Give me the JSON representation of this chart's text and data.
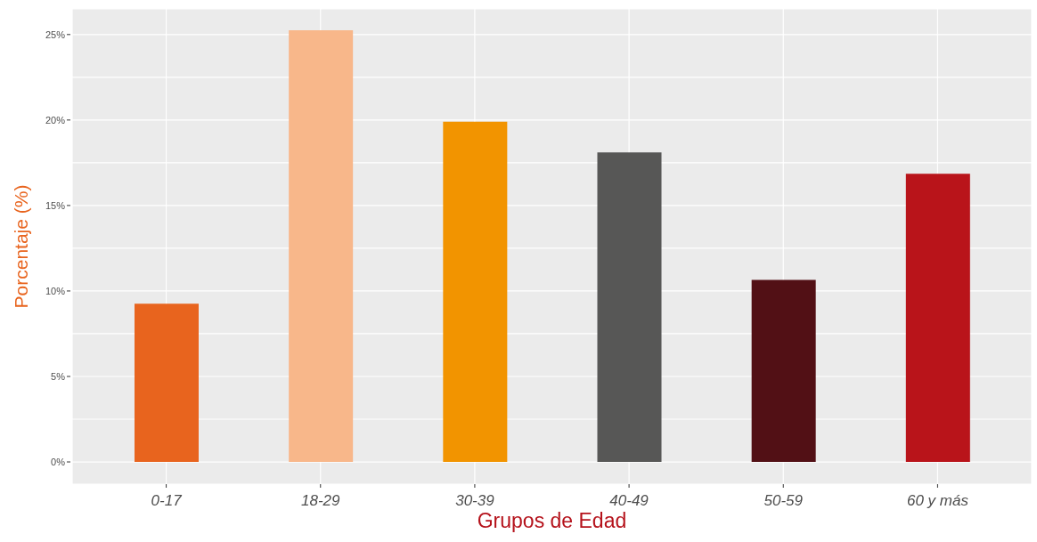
{
  "chart_data": {
    "type": "bar",
    "xlabel": "Grupos de Edad",
    "ylabel": "Porcentaje (%)",
    "categories": [
      "0-17",
      "18-29",
      "30-39",
      "40-49",
      "50-59",
      "60 y más"
    ],
    "values": [
      9.25,
      25.25,
      19.9,
      18.1,
      10.65,
      16.85
    ],
    "colors": [
      "#e8641e",
      "#f8b78a",
      "#f29400",
      "#575756",
      "#521015",
      "#b9141a"
    ],
    "ylim": [
      -1.3,
      26.5
    ],
    "yticks": [
      {
        "value": 0,
        "label": "0%"
      },
      {
        "value": 2.5,
        "label": null
      },
      {
        "value": 5,
        "label": "5%"
      },
      {
        "value": 7.5,
        "label": null
      },
      {
        "value": 10,
        "label": "10%"
      },
      {
        "value": 12.5,
        "label": null
      },
      {
        "value": 15,
        "label": "15%"
      },
      {
        "value": 17.5,
        "label": null
      },
      {
        "value": 20,
        "label": "20%"
      },
      {
        "value": 22.5,
        "label": null
      },
      {
        "value": 25,
        "label": "25%"
      }
    ],
    "grid": true,
    "legend": false
  }
}
